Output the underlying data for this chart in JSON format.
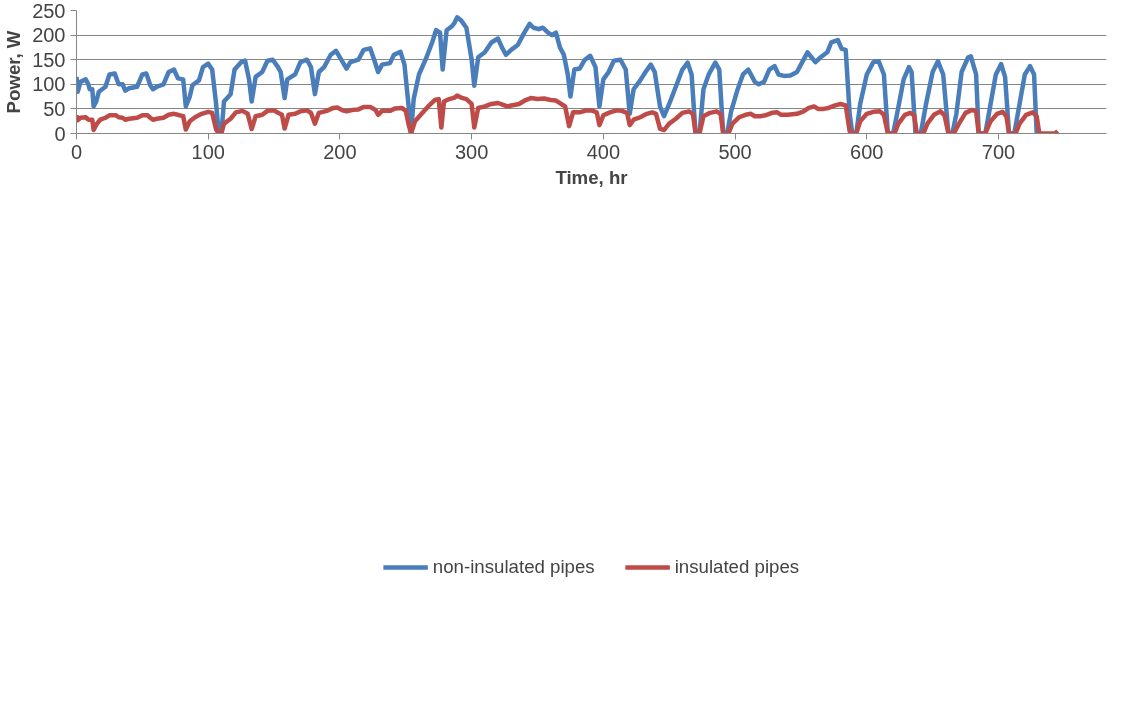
{
  "chart_data": {
    "type": "line",
    "xlabel": "Time, hr",
    "ylabel": "Power, W",
    "xlim": [
      0,
      782
    ],
    "xticks": [
      0,
      100,
      200,
      300,
      400,
      500,
      600,
      700
    ],
    "ylim": [
      0,
      250
    ],
    "yticks": [
      0,
      50,
      100,
      150,
      200,
      250
    ],
    "grid": "y",
    "legend": "bottom",
    "line_style": "solid",
    "marker": "none",
    "series": [
      {
        "name": "non-insulated pipes",
        "color": "#4a7ebb",
        "x": [
          0,
          1,
          3,
          7,
          9,
          10,
          12,
          13,
          15,
          17,
          22,
          25,
          29,
          32,
          35,
          37,
          40,
          46,
          50,
          53,
          56,
          58,
          61,
          66,
          70,
          74,
          77,
          81,
          83,
          86,
          88,
          93,
          96,
          100,
          103,
          106,
          108,
          110,
          112,
          117,
          120,
          125,
          128,
          131,
          133,
          136,
          141,
          145,
          149,
          153,
          155,
          158,
          160,
          166,
          170,
          175,
          178,
          181,
          184,
          188,
          193,
          197,
          201,
          205,
          208,
          214,
          218,
          223,
          226,
          229,
          232,
          238,
          241,
          246,
          249,
          252,
          254,
          256,
          260,
          265,
          270,
          273,
          276,
          278,
          281,
          285,
          287,
          289,
          292,
          296,
          300,
          302,
          305,
          310,
          315,
          320,
          323,
          326,
          330,
          335,
          340,
          344,
          347,
          351,
          354,
          358,
          361,
          364,
          367,
          370,
          373,
          375,
          378,
          382,
          386,
          390,
          394,
          397,
          400,
          404,
          408,
          413,
          417,
          420,
          423,
          428,
          432,
          436,
          439,
          443,
          446,
          450,
          455,
          460,
          464,
          467,
          470,
          473,
          476,
          480,
          485,
          488,
          491,
          494,
          497,
          502,
          506,
          510,
          513,
          515,
          518,
          522,
          526,
          530,
          533,
          537,
          542,
          547,
          551,
          555,
          558,
          561,
          565,
          570,
          573,
          578,
          581,
          584,
          587,
          589,
          592,
          595,
          600,
          605,
          609,
          613,
          616,
          620,
          623,
          628,
          632,
          634,
          637,
          641,
          645,
          650,
          654,
          658,
          662,
          665,
          668,
          672,
          677,
          679,
          683,
          685,
          690,
          694,
          698,
          702,
          705,
          708,
          712,
          716,
          720,
          724,
          727,
          729,
          732
        ],
        "values": [
          115,
          85,
          105,
          110,
          100,
          90,
          90,
          55,
          65,
          85,
          95,
          120,
          122,
          100,
          100,
          87,
          92,
          95,
          120,
          122,
          98,
          90,
          95,
          100,
          125,
          130,
          112,
          110,
          55,
          75,
          98,
          108,
          135,
          142,
          130,
          60,
          0,
          0,
          65,
          80,
          130,
          145,
          148,
          110,
          65,
          115,
          125,
          148,
          150,
          135,
          125,
          72,
          110,
          120,
          145,
          150,
          135,
          80,
          125,
          135,
          160,
          168,
          150,
          132,
          145,
          150,
          170,
          173,
          150,
          125,
          140,
          143,
          160,
          166,
          140,
          60,
          0,
          70,
          120,
          150,
          185,
          210,
          205,
          130,
          210,
          218,
          225,
          236,
          230,
          215,
          150,
          97,
          155,
          165,
          185,
          193,
          175,
          160,
          170,
          180,
          205,
          223,
          215,
          212,
          215,
          205,
          200,
          205,
          175,
          160,
          120,
          75,
          130,
          132,
          150,
          158,
          135,
          55,
          110,
          125,
          148,
          150,
          130,
          40,
          90,
          108,
          125,
          140,
          125,
          55,
          35,
          60,
          95,
          130,
          144,
          120,
          0,
          0,
          90,
          120,
          144,
          130,
          0,
          0,
          45,
          90,
          120,
          130,
          115,
          105,
          100,
          105,
          130,
          137,
          120,
          117,
          118,
          125,
          145,
          165,
          155,
          145,
          155,
          165,
          185,
          190,
          172,
          170,
          40,
          0,
          0,
          60,
          120,
          145,
          147,
          120,
          0,
          0,
          40,
          110,
          135,
          125,
          0,
          0,
          60,
          125,
          147,
          120,
          0,
          0,
          40,
          125,
          155,
          157,
          120,
          0,
          0,
          60,
          120,
          141,
          115,
          0,
          0,
          60,
          120,
          137,
          120,
          0,
          0
        ]
      },
      {
        "name": "insulated pipes",
        "color": "#be4b48",
        "x": [
          0,
          1,
          3,
          7,
          9,
          12,
          13,
          15,
          18,
          22,
          25,
          30,
          32,
          35,
          37,
          40,
          46,
          50,
          54,
          56,
          58,
          61,
          66,
          70,
          74,
          77,
          81,
          83,
          86,
          90,
          95,
          100,
          103,
          106,
          108,
          110,
          112,
          117,
          121,
          126,
          130,
          133,
          136,
          141,
          145,
          150,
          153,
          156,
          158,
          161,
          166,
          170,
          175,
          178,
          181,
          184,
          190,
          195,
          198,
          202,
          205,
          210,
          214,
          218,
          223,
          227,
          229,
          232,
          238,
          242,
          247,
          250,
          252,
          254,
          257,
          262,
          267,
          272,
          275,
          277,
          279,
          283,
          287,
          289,
          292,
          296,
          300,
          302,
          305,
          310,
          315,
          320,
          324,
          327,
          330,
          336,
          341,
          345,
          350,
          355,
          360,
          364,
          368,
          371,
          374,
          377,
          382,
          387,
          391,
          395,
          397,
          400,
          405,
          410,
          414,
          418,
          420,
          423,
          428,
          433,
          437,
          440,
          443,
          446,
          450,
          455,
          460,
          465,
          468,
          470,
          473,
          476,
          481,
          486,
          489,
          491,
          495,
          498,
          503,
          508,
          512,
          515,
          519,
          523,
          528,
          532,
          535,
          540,
          547,
          552,
          556,
          560,
          563,
          567,
          571,
          576,
          580,
          584,
          587,
          589,
          592,
          595,
          600,
          605,
          610,
          613,
          616,
          621,
          624,
          629,
          633,
          636,
          638,
          643,
          646,
          651,
          656,
          659,
          662,
          666,
          670,
          675,
          680,
          683,
          685,
          690,
          694,
          699,
          703,
          706,
          708,
          713,
          716,
          721,
          726,
          729,
          731,
          743,
          745
        ],
        "values": [
          37,
          27,
          32,
          33,
          28,
          28,
          7,
          18,
          28,
          32,
          37,
          37,
          33,
          32,
          28,
          30,
          32,
          37,
          37,
          32,
          28,
          30,
          32,
          38,
          40,
          38,
          35,
          8,
          25,
          33,
          40,
          44,
          42,
          8,
          0,
          0,
          20,
          30,
          43,
          46,
          40,
          9,
          35,
          38,
          46,
          47,
          42,
          38,
          10,
          38,
          40,
          45,
          47,
          42,
          20,
          42,
          46,
          52,
          53,
          47,
          45,
          48,
          49,
          54,
          54,
          48,
          38,
          46,
          46,
          51,
          52,
          46,
          20,
          0,
          25,
          40,
          55,
          68,
          70,
          12,
          65,
          70,
          73,
          77,
          73,
          70,
          60,
          12,
          52,
          55,
          60,
          62,
          58,
          55,
          57,
          60,
          68,
          72,
          70,
          71,
          68,
          67,
          60,
          55,
          15,
          43,
          43,
          47,
          47,
          43,
          17,
          37,
          43,
          47,
          46,
          42,
          17,
          28,
          33,
          40,
          43,
          40,
          10,
          7,
          20,
          30,
          42,
          45,
          40,
          0,
          0,
          35,
          42,
          45,
          40,
          0,
          0,
          20,
          33,
          38,
          40,
          35,
          35,
          37,
          42,
          43,
          38,
          38,
          40,
          45,
          52,
          55,
          50,
          50,
          52,
          57,
          60,
          57,
          5,
          0,
          0,
          25,
          40,
          44,
          45,
          38,
          0,
          0,
          20,
          38,
          42,
          37,
          0,
          0,
          20,
          38,
          45,
          37,
          0,
          0,
          20,
          42,
          48,
          45,
          0,
          0,
          25,
          40,
          44,
          35,
          0,
          0,
          20,
          38,
          43,
          35,
          0,
          0,
          5
        ]
      }
    ]
  }
}
